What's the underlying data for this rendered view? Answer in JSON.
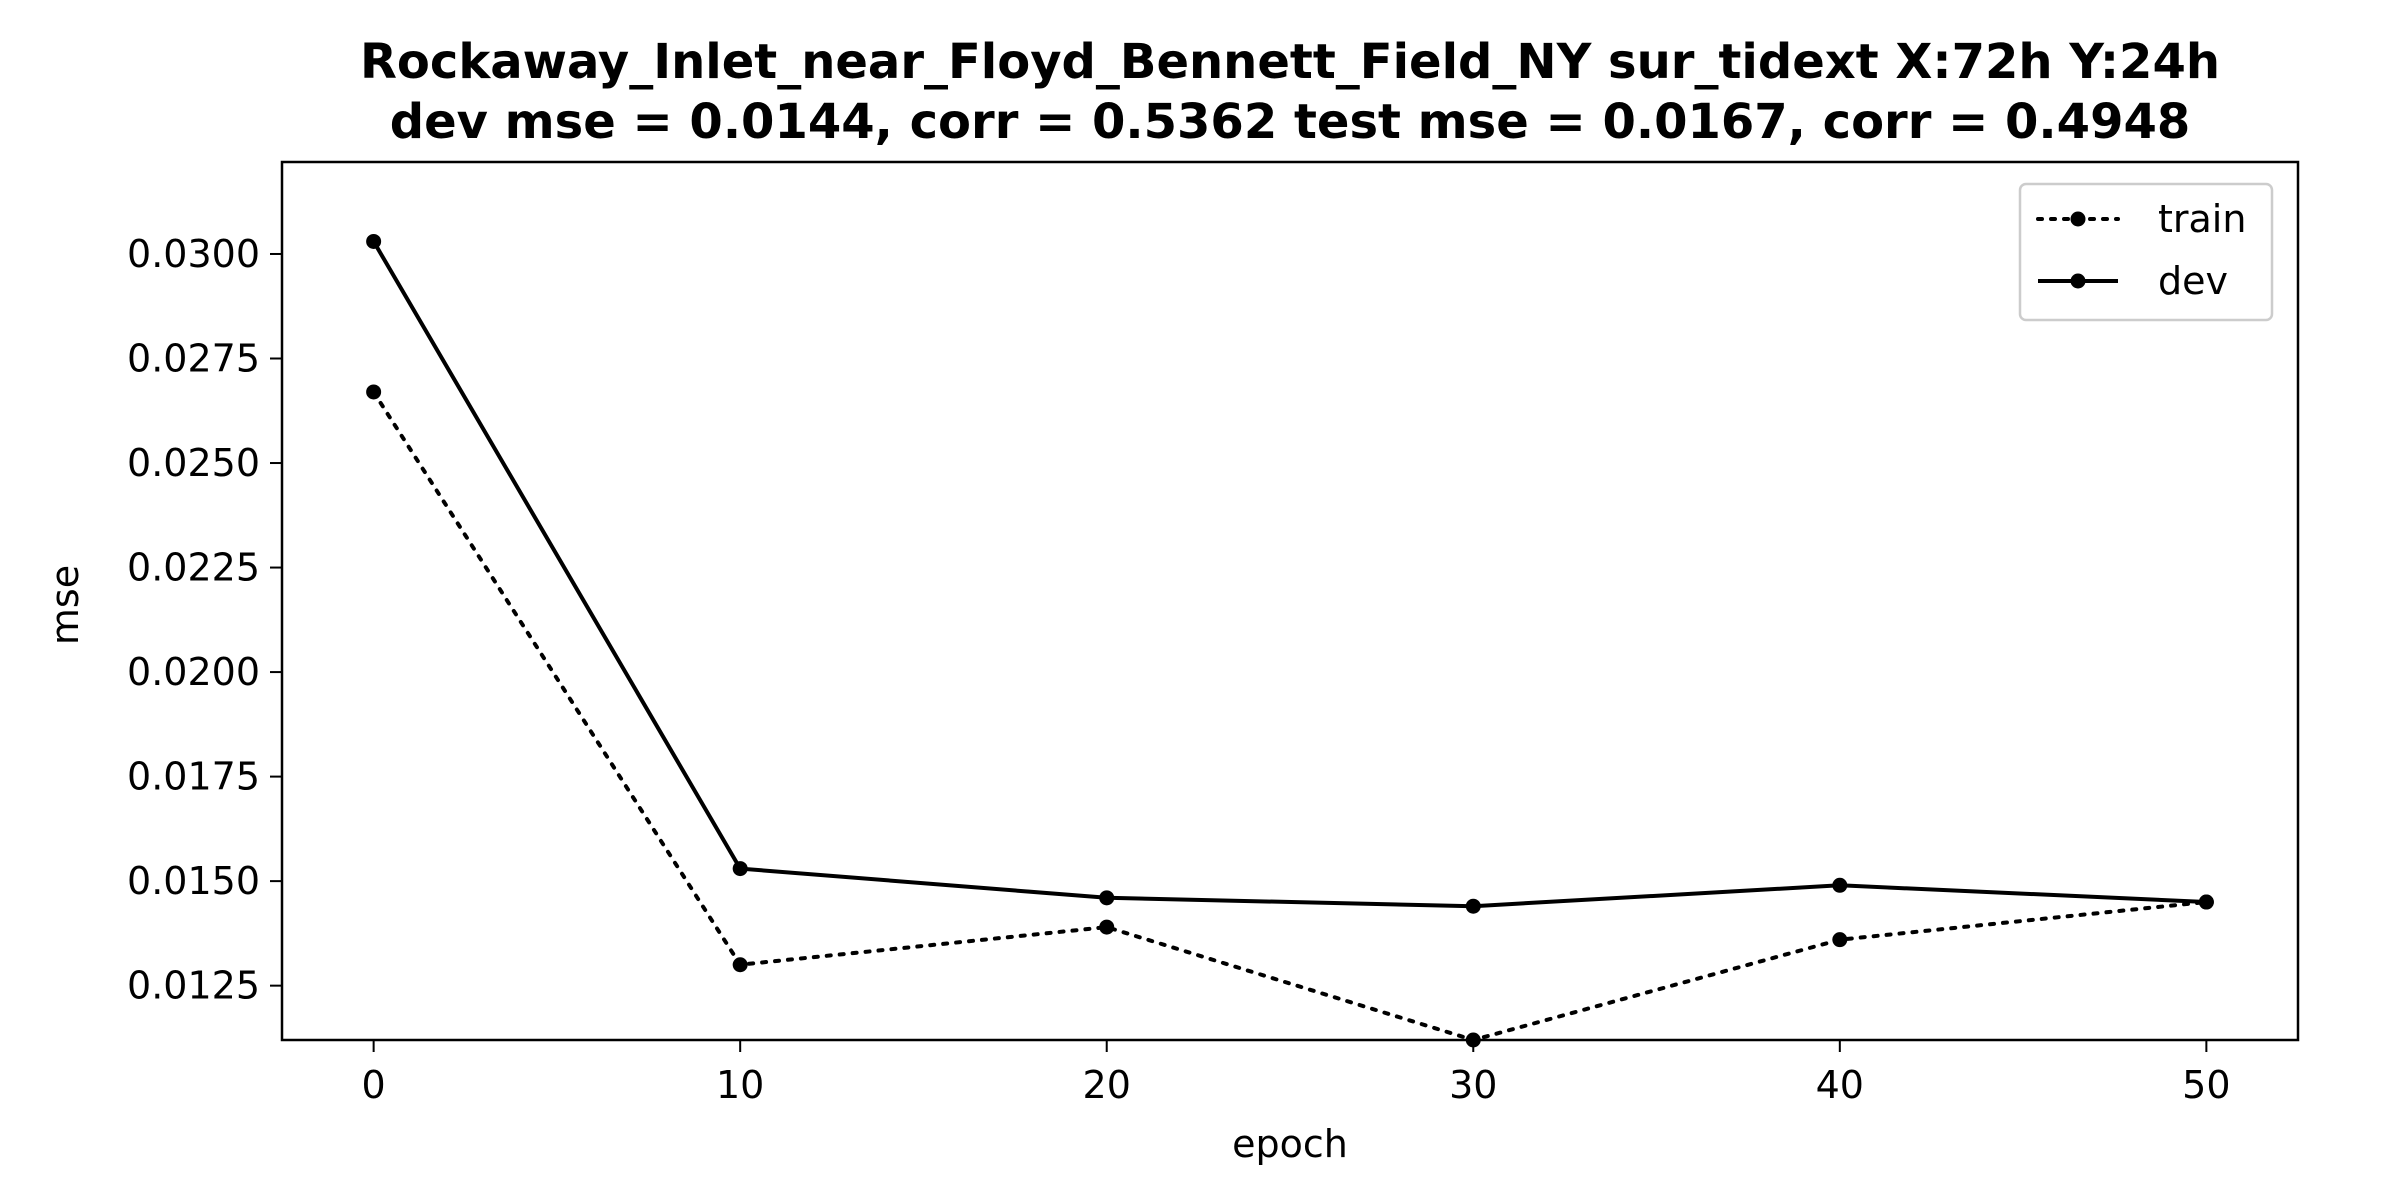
{
  "chart_data": {
    "type": "line",
    "title": "Rockaway_Inlet_near_Floyd_Bennett_Field_NY   sur_tidext   X:72h   Y:24h",
    "subtitle": "dev mse = 0.0144, corr = 0.5362   test mse = 0.0167, corr = 0.4948",
    "xlabel": "epoch",
    "ylabel": "mse",
    "x": [
      0,
      10,
      20,
      30,
      40,
      50
    ],
    "xlim": [
      -2.5,
      52.5
    ],
    "ylim": [
      0.0112,
      0.0322
    ],
    "x_ticks": [
      0,
      10,
      20,
      30,
      40,
      50
    ],
    "x_tick_labels": [
      "0",
      "10",
      "20",
      "30",
      "40",
      "50"
    ],
    "y_ticks": [
      0.0125,
      0.015,
      0.0175,
      0.02,
      0.0225,
      0.025,
      0.0275,
      0.03
    ],
    "y_tick_labels": [
      "0.0125",
      "0.0150",
      "0.0175",
      "0.0200",
      "0.0225",
      "0.0250",
      "0.0275",
      "0.0300"
    ],
    "grid": false,
    "legend_position": "top-right",
    "series": [
      {
        "name": "train",
        "line_style": "dotted",
        "marker": "circle",
        "color": "#000000",
        "values": [
          0.0267,
          0.013,
          0.0139,
          0.0112,
          0.0136,
          0.0145
        ]
      },
      {
        "name": "dev",
        "line_style": "solid",
        "marker": "circle",
        "color": "#000000",
        "values": [
          0.0303,
          0.0153,
          0.0146,
          0.0144,
          0.0149,
          0.0145
        ]
      }
    ]
  }
}
